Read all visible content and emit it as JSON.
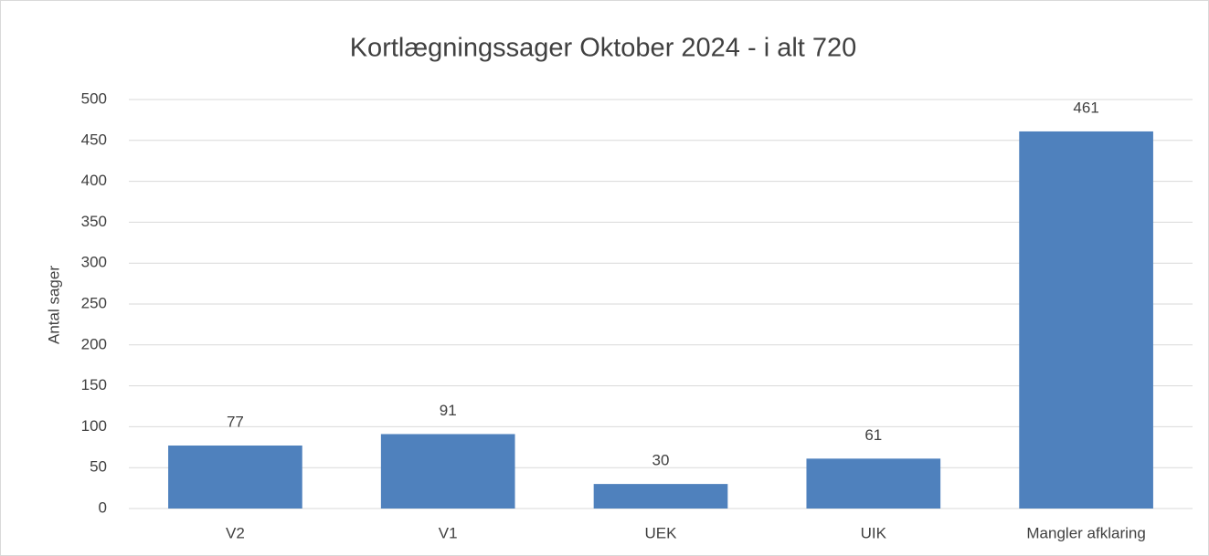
{
  "chart_data": {
    "type": "bar",
    "title": "Kortlægningssager Oktober 2024 - i alt 720",
    "y_label": "Antal sager",
    "categories": [
      "V2",
      "V1",
      "UEK",
      "UIK",
      "Mangler afklaring"
    ],
    "values": [
      77,
      91,
      30,
      61,
      461
    ],
    "color": "#4f81bd",
    "ylim": [
      0,
      500
    ],
    "yticks": [
      0,
      50,
      100,
      150,
      200,
      250,
      300,
      350,
      400,
      450,
      500
    ],
    "grid": true
  }
}
